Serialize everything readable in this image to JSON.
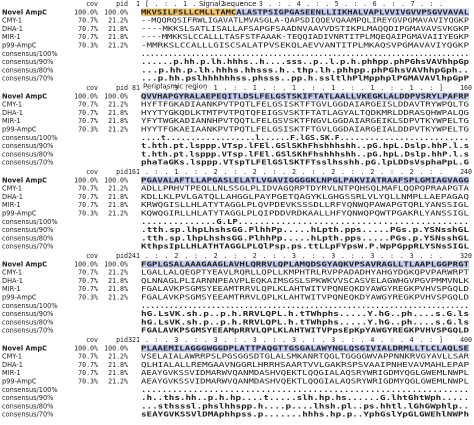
{
  "annotations": {
    "signal": "Signal sequence",
    "periplasmic": "Periplasmic region"
  },
  "header": {
    "cov": "cov",
    "pid": "pid"
  },
  "sequences": [
    {
      "name": "Novel AmpC",
      "cov": "100.0%",
      "pid": "100.0%"
    },
    {
      "name": "CMY-1",
      "cov": "70.7%",
      "pid": "21.2%"
    },
    {
      "name": "DHA-1",
      "cov": "70.7%",
      "pid": "21.8%"
    },
    {
      "name": "MIR-1",
      "cov": "70.7%",
      "pid": "21.8%"
    },
    {
      "name": "p99-AmpC",
      "cov": "70.3%",
      "pid": "21.2%"
    },
    {
      "name": "consensus/100%"
    },
    {
      "name": "consensus/90%"
    },
    {
      "name": "consensus/80%"
    },
    {
      "name": "consensus/70%"
    }
  ],
  "blocks": [
    {
      "start": "1",
      "ruler": "[ . : . 1 . : . 2 . : . 3 . : . 4 . : . 5 . : . 6 . : . 7 . : .",
      "rows": [
        "MKVSILFSLLCMLLTAMCALASTPSIGPGASEENLLIIKHALVAPLVVIVGVVPSGVVAVAL",
        "--MQQRQSIFRWLIGAVATLMVASGLA-QAPSDIQQEVQAAMPQLIREYGVPGMAVAVIYQGKP",
        "----MKKSLSATLISALLAFSAPGFSAADNVAAVVDSTIKPLMAQQDIPGMAVAVSVKGKP",
        "----MMKKSLCCALLLTASFSTFAAAK-TEQQIADIVNRTITPLMQEQAIPGMAVAIIYEGKP",
        "-MMRKSLCCALLLGISCSALATPVSEKQLAEVVANTITPLMKAQSVPGMAVAVIYQGKP",
        "........................................................................",
        "......p.hh.p.lh.hhhs..h....sss..p..l.p.h.phhpp.phPGhsVAVhhpGp",
        "...p.hh.p.lh.hhhs.hhsss.h..thp.lh.phhpp.phPGhsVAVhhpGph..",
        "...p.hh.pslhhhhhhss.phsss..pp.h.ssltlhPlMpphplPGMAVAVlhpGpP"
      ]
    },
    {
      "start": "81",
      "end": "160",
      "ruler": ". : . 9 . : . 1 . : . 1 . : . 1 . : . 1 . : . 1 . : . 1 . : ]",
      "rows": [
        "QVVHAPGYRALAEPEQITLDSLFELGSTSKIFTATLAALLVKEGKLALDDPVSRYLPAFRP",
        "HYFTFGKADIAANKPVTPQTLFELGSISKTFTGVLGGDAIARGEISLDDAVTRYWPQLTG",
        "HYYTYGKQDLKTMTPVTPQTQFEIGSVSKTFTATLAGYALTQDKMRLDDRASQHWPALQG",
        "YFYTWGKADIANNHPVTQQTLFELGSVSKTFNGVLGGDAIARGEIKLSDPVTKYWPELTG",
        "HYYTFGKAEIAANKPVTPQTLFELGSISKTFTGVLGGDAIARGEIALDDPVTKYWPELTG",
        "....t..................l......F.lGS.SK.F..........................",
        "t.hth.pt.lsppp.VTsp.lFEl.GSlSKhFhshhhshh..pG.hpL.Dslp.hhP.l.s",
        "t.hth.pt.lsppp.VTsp.lFEl.GSlSKhFhshhhshh..pG.hpL.Dslp.hhP.l.s",
        "phaTaGKs.lsppp.VTspTLFElGSlSKTFTsslhsshh.pG.lpLDDsVsphaPpL.G"
      ]
    },
    {
      "start": "161",
      "end": "240",
      "ruler": ". : . 1 . : . 2 . : . 2 . : . 2 . : . 2 . : . 2 . : . 2 . : .",
      "rows": [
        "PGAVALAFTLLAPGASLELATLVGAVIGGGGKLNPGLPAKVIATRAAFSPLGMIAGVAGG",
        "ADLLPRHVTPEQLLNLSSGLPLIDVAGQRPTDYRVLNTPQHSQLMAFLQQPQPRAAPGTA",
        "KDLLKLPVLGATQLLAHGGLPAYPGETQAGYKLGHGSSRLVLYQLLNMPLLAEPAGAQ",
        "KRWQGISLLHLATYTAGGLPLQVPDEVKSSSDLLRFYQNWQPAWAPGTQRLYANSSIGL",
        "KQWQGIRLLHLATYTAGGLPLQIPDDVRDKAALLHFYQNWQPQWTPGAKRLYANSSIGL",
        "..............G.LP...........................................",
        ".tth.sp.lhpLhshsGG.PlhhPp.....hLpth.pps.....PGs.p.YSNsshGL",
        ".tth.sp.lhpLhshsGG.PlhhPp.....hLpth.pps.....PGs.p.YSNsshGL",
        "KthpsIpLLHLATHTAGGLPLQlPsp.ps.ttLLpFYpsW.P.WpPGppRLYSNsSIGL"
      ]
    },
    {
      "start": "241",
      "end": "320",
      "ruler": ". : . 2 . : . 2 . : . 2 . : . 3 . : . 3 . : . 3 . : . 3 . : .",
      "rows": [
        "FGPLGSALAAAGAAGLAVHLQRRVLQPLAMQDSGYAQKVPSAVRAGLLTLAAPLGGPRGT",
        "LGALLALQEGPTYEAVLRQRLLQPLLKMPHTRLRVPPADADHYAHGYDGKQPVPARWRPT",
        "QLNNAGLPLIARNNPEAVPLEQKAIMSGSLSPKWKVVSCASVELAGWHGVPGVPMMVNLK",
        "FGALAVKPSGMSYEEAMTRRVLQPLKLAHTWITVPQNEQKDYAWGYREGKPVHVSPGQLD",
        "FGALAVKPSGMSYEEAMTRRVLQPLKLAHTWITVPQNEQKDYAWGYREGKPVHVSPGQLD",
        "......................................................................",
        "hG.LsVK.sh.p..p.h.RRVLQPL.h.tTWhphs.....Y.hG..ph....s.G.ls",
        "hG.LsVK.sh.p..p.h.RRVLQPL.h.tTWhphs.....Y.hG..ph....s.G.ls",
        "FGALAVKPSGMSYEEAMpRRVLQPLKLAHTWITVPpsEpKpYAWGYREGKPVHVSPGQLD"
      ]
    },
    {
      "start": "321",
      "end": "400",
      "ruler": ". : . 3 . : . 3 . : . 3 . : . 3 . : . 3 . : . 4 . : . 4 . : ]",
      "rows": [
        "PLAAEMILAGGGWGGDPLATTPAQGTTGSGALAWYNGLQSGIVIALDRMLLTLCLAQLSE",
        "VSELAIALAWRRPSLPGSGGSDTGLALSMKANRTQGLTGGGGWVAPPNNKRVGYAVLLSAR",
        "QLHIALALLREMGAAVNGGRLHRRHSAARTVVLGAKRSPSVAAIPNHEVAVMAHLEPAP",
        "AEAYGVKSSVIDMARWVQANMDASHVQEKTLQQGIALAQSRYWRIGDMYQGLGWEMLNWPL",
        "AEAYGVKSSVIDMARWVQANMDASHVQEKTLQQGIALAQSRYWRIGDMYQGLGWEMLNWPL",
        "...............................................................",
        ".h..ths.hh..p.h.hp....t.....slh.hp.hs......G.lhtGhtWph.....",
        "...sthsssl.phslhhspp.h....p....lhsh.pl..ps.hhtl.lGhGWphlp..",
        "sEAYGVKSSVlDMAphhpss.p.......hhhs.hp.p..YphGslYpGLGWEhlNWPh"
      ]
    }
  ]
}
